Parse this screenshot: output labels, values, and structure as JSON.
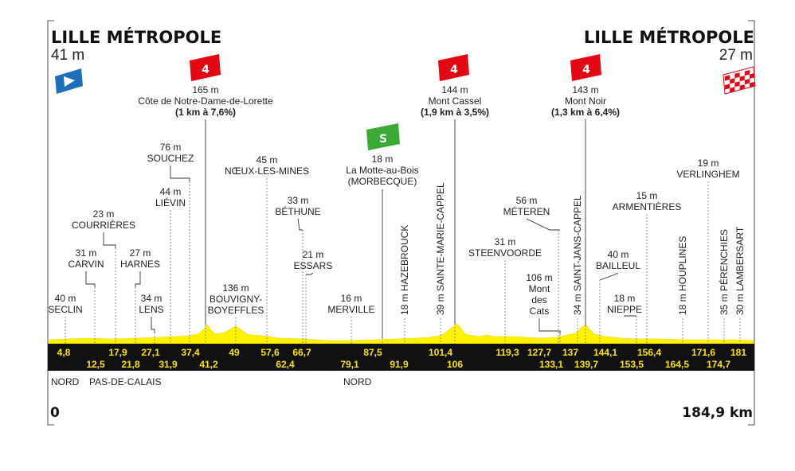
{
  "start": {
    "name": "LILLE MÉTROPOLE",
    "altitude": "41 m"
  },
  "finish": {
    "name": "LILLE MÉTROPOLE",
    "altitude": "27 m"
  },
  "distance": {
    "start": "0",
    "end": "184,9 km"
  },
  "regions": [
    {
      "label": "NORD",
      "km": 0
    },
    {
      "label": "PAS-DE-CALAIS",
      "km": 12.5
    },
    {
      "label": "NORD",
      "km": 79.1
    }
  ],
  "climbs": [
    {
      "category": "4",
      "km": 41.2,
      "altitude": "165 m",
      "name": "Côte de Notre-Dame-de-Lorette",
      "detail": "(1 km à 7,6%)",
      "color": "#e30613"
    },
    {
      "category": "4",
      "km": 106,
      "altitude": "144 m",
      "name": "Mont Cassel",
      "detail": "(1,9 km à 3,5%)",
      "color": "#e30613"
    },
    {
      "category": "4",
      "km": 139.7,
      "altitude": "143 m",
      "name": "Mont Noir",
      "detail": "(1,3 km à 6,4%)",
      "color": "#e30613"
    }
  ],
  "sprint": {
    "label": "S",
    "km": 91.9,
    "altitude": "18 m",
    "name": "La Motte-au-Bois",
    "detail": "(MORBECQUE)",
    "color": "#3aa935"
  },
  "waypoints": [
    {
      "alt": "40 m",
      "lines": [
        "SECLIN"
      ]
    },
    {
      "alt": "31 m",
      "lines": [
        "CARVIN"
      ]
    },
    {
      "alt": "23 m",
      "lines": [
        "COURRIÈRES"
      ]
    },
    {
      "alt": "27 m",
      "lines": [
        "HARNES"
      ]
    },
    {
      "alt": "34 m",
      "lines": [
        "LENS"
      ]
    },
    {
      "alt": "44 m",
      "lines": [
        "LIÉVIN"
      ]
    },
    {
      "alt": "76 m",
      "lines": [
        "SOUCHEZ"
      ]
    },
    {
      "alt": "136 m",
      "lines": [
        "BOUVIGNY-",
        "BOYEFFLES"
      ]
    },
    {
      "alt": "45 m",
      "lines": [
        "NŒUX-LES-MINES"
      ]
    },
    {
      "alt": "33 m",
      "lines": [
        "BÉTHUNE"
      ]
    },
    {
      "alt": "21 m",
      "lines": [
        "ESSARS"
      ]
    },
    {
      "alt": "16 m",
      "lines": [
        "MERVILLE"
      ]
    },
    {
      "alt": "31 m",
      "lines": [
        "STEENVOORDE"
      ]
    },
    {
      "alt": "106 m",
      "lines": [
        "Mont",
        "des",
        "Cats"
      ]
    },
    {
      "alt": "56 m",
      "lines": [
        "MÉTEREN"
      ]
    },
    {
      "alt": "40 m",
      "lines": [
        "BAILLEUL"
      ]
    },
    {
      "alt": "18 m",
      "lines": [
        "NIEPPE"
      ]
    },
    {
      "alt": "15 m",
      "lines": [
        "ARMENTIÈRES"
      ]
    },
    {
      "alt": "19 m",
      "lines": [
        "VERLINGHEM"
      ]
    }
  ],
  "vertical_waypoints": [
    {
      "text": "18 m HAZEBROUCK"
    },
    {
      "text": "39 m SAINTE-MARIE-CAPPEL"
    },
    {
      "text": "34 m SAINT-JANS-CAPPEL"
    },
    {
      "text": "18 m HOUPLINES"
    },
    {
      "text": "35 m PÉRENCHIES"
    },
    {
      "text": "30 m LAMBERSART"
    }
  ],
  "km_top": [
    "4,8",
    "17,9",
    "27,1",
    "37,4",
    "49",
    "57,6",
    "66,7",
    "87,5",
    "101,4",
    "119,3",
    "127,7",
    "137",
    "144,1",
    "156,4",
    "171,6",
    "181"
  ],
  "km_bottom": [
    "12,5",
    "21,8",
    "31,9",
    "41,2",
    "62,4",
    "79,1",
    "91,9",
    "106",
    "133,1",
    "139,7",
    "153,5",
    "164,5",
    "174,7"
  ],
  "colors": {
    "profile_fill": "#fff200",
    "band": "#111111",
    "km_labels": "#f7e400",
    "start_flag": "#1d70b8",
    "climb_badge": "#e30613",
    "sprint_badge": "#3aa935"
  },
  "icons": {
    "start": "start-flag-icon",
    "finish": "checkered-flag-icon"
  }
}
